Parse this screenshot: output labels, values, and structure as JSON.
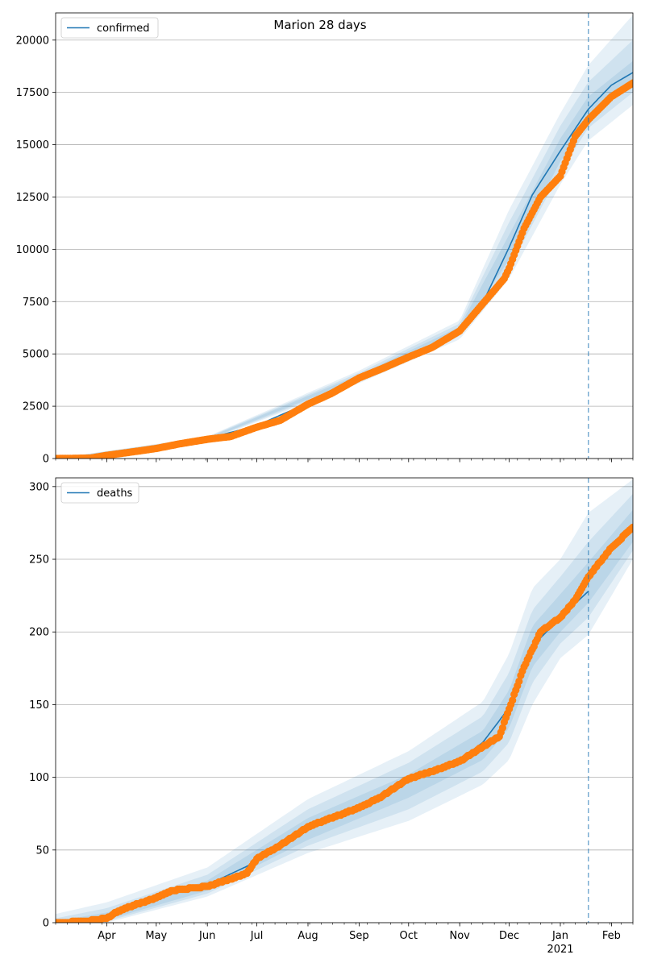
{
  "figure_title": "Marion 28 days",
  "colors": {
    "model_line": "#1f77b4",
    "observed": "#ff7f0e",
    "band": "#1f77b4",
    "grid": "#b0b0b0",
    "forecast_line": "#1f77b4"
  },
  "x_axis": {
    "range": [
      "2020-03-01",
      "2021-02-14"
    ],
    "month_ticks": [
      {
        "date": "2020-04-01",
        "label": "Apr"
      },
      {
        "date": "2020-05-01",
        "label": "May"
      },
      {
        "date": "2020-06-01",
        "label": "Jun"
      },
      {
        "date": "2020-07-01",
        "label": "Jul"
      },
      {
        "date": "2020-08-01",
        "label": "Aug"
      },
      {
        "date": "2020-09-01",
        "label": "Sep"
      },
      {
        "date": "2020-10-01",
        "label": "Oct"
      },
      {
        "date": "2020-11-01",
        "label": "Nov"
      },
      {
        "date": "2020-12-01",
        "label": "Dec"
      },
      {
        "date": "2021-01-01",
        "label": "Jan"
      },
      {
        "date": "2021-02-01",
        "label": "Feb"
      }
    ],
    "year_label": "2021",
    "year_label_date": "2021-01-01",
    "forecast_start": "2021-01-18"
  },
  "chart_data": [
    {
      "type": "line",
      "title": "Marion 28 days",
      "legend": [
        "confirmed"
      ],
      "legend_position": "top-left",
      "grid": "y",
      "ylim": [
        0,
        21300
      ],
      "yticks": [
        0,
        2500,
        5000,
        7500,
        10000,
        12500,
        15000,
        17500,
        20000
      ],
      "ytick_labels": [
        "0",
        "2500",
        "5000",
        "7500",
        "10000",
        "12500",
        "15000",
        "17500",
        "20000"
      ],
      "series": [
        {
          "name": "confirmed",
          "kind": "model",
          "x": [
            "2020-03-01",
            "2020-04-01",
            "2020-05-01",
            "2020-06-01",
            "2020-07-01",
            "2020-08-01",
            "2020-09-01",
            "2020-10-01",
            "2020-11-01",
            "2020-11-15",
            "2020-12-01",
            "2020-12-15",
            "2021-01-01",
            "2021-01-18",
            "2021-02-01",
            "2021-02-14"
          ],
          "values": [
            0,
            150,
            480,
            950,
            1580,
            2650,
            3900,
            4880,
            6150,
            7450,
            10100,
            12600,
            14700,
            16700,
            17850,
            18450
          ]
        },
        {
          "kind": "observed",
          "x": [
            "2020-03-01",
            "2020-03-22",
            "2020-04-01",
            "2020-04-15",
            "2020-05-01",
            "2020-05-15",
            "2020-06-01",
            "2020-06-15",
            "2020-07-01",
            "2020-07-15",
            "2020-08-01",
            "2020-08-15",
            "2020-09-01",
            "2020-09-15",
            "2020-10-01",
            "2020-10-15",
            "2020-11-01",
            "2020-11-15",
            "2020-11-28",
            "2020-12-01",
            "2020-12-10",
            "2020-12-20",
            "2021-01-01",
            "2021-01-10",
            "2021-01-18",
            "2021-02-01",
            "2021-02-14"
          ],
          "values": [
            0,
            20,
            150,
            300,
            480,
            700,
            920,
            1050,
            1500,
            1820,
            2600,
            3100,
            3850,
            4300,
            4850,
            5300,
            6100,
            7400,
            8600,
            9100,
            11000,
            12500,
            13500,
            15400,
            16200,
            17300,
            17950
          ]
        }
      ],
      "bands": [
        {
          "x": [
            "2020-03-01",
            "2020-06-01",
            "2020-09-01",
            "2020-11-01",
            "2020-12-01",
            "2021-01-01",
            "2021-01-18",
            "2021-02-14"
          ],
          "lower": [
            0,
            850,
            3600,
            5700,
            8600,
            13100,
            15200,
            16900
          ],
          "upper": [
            0,
            1050,
            4200,
            6600,
            11900,
            16500,
            18800,
            21200
          ]
        },
        {
          "x": [
            "2020-03-01",
            "2020-06-01",
            "2020-09-01",
            "2020-11-01",
            "2020-12-01",
            "2021-01-01",
            "2021-01-18",
            "2021-02-14"
          ],
          "lower": [
            0,
            880,
            3700,
            5850,
            9100,
            13700,
            15800,
            17500
          ],
          "upper": [
            0,
            1020,
            4100,
            6450,
            11300,
            15900,
            18000,
            20000
          ]
        },
        {
          "x": [
            "2020-03-01",
            "2020-06-01",
            "2020-09-01",
            "2020-11-01",
            "2020-12-01",
            "2021-01-01",
            "2021-01-18",
            "2021-02-14"
          ],
          "lower": [
            0,
            910,
            3800,
            6000,
            9500,
            14200,
            16200,
            17900
          ],
          "upper": [
            0,
            990,
            4000,
            6300,
            10700,
            15300,
            17300,
            19000
          ]
        }
      ]
    },
    {
      "type": "line",
      "title": "",
      "legend": [
        "deaths"
      ],
      "legend_position": "top-left",
      "grid": "y",
      "ylim": [
        0,
        306
      ],
      "yticks": [
        0,
        50,
        100,
        150,
        200,
        250,
        300
      ],
      "ytick_labels": [
        "0",
        "50",
        "100",
        "150",
        "200",
        "250",
        "300"
      ],
      "series": [
        {
          "name": "deaths",
          "kind": "model",
          "x": [
            "2020-03-01",
            "2020-04-01",
            "2020-05-01",
            "2020-06-01",
            "2020-07-01",
            "2020-08-01",
            "2020-09-01",
            "2020-10-01",
            "2020-11-01",
            "2020-11-15",
            "2020-12-01",
            "2020-12-15",
            "2021-01-01",
            "2021-01-18"
          ],
          "values": [
            0,
            4,
            18,
            26,
            42,
            64,
            79,
            97,
            112,
            124,
            148,
            190,
            210,
            228
          ]
        },
        {
          "kind": "observed",
          "x": [
            "2020-03-01",
            "2020-03-20",
            "2020-04-01",
            "2020-04-08",
            "2020-04-20",
            "2020-05-01",
            "2020-05-10",
            "2020-06-01",
            "2020-06-15",
            "2020-06-25",
            "2020-07-01",
            "2020-07-15",
            "2020-08-01",
            "2020-08-15",
            "2020-09-01",
            "2020-09-15",
            "2020-10-01",
            "2020-10-15",
            "2020-11-01",
            "2020-11-15",
            "2020-11-25",
            "2020-12-01",
            "2020-12-10",
            "2020-12-20",
            "2021-01-01",
            "2021-01-10",
            "2021-01-18",
            "2021-02-01",
            "2021-02-14"
          ],
          "values": [
            0,
            1,
            3,
            8,
            13,
            17,
            22,
            25,
            30,
            34,
            44,
            53,
            66,
            72,
            79,
            87,
            99,
            104,
            111,
            121,
            128,
            147,
            176,
            200,
            210,
            222,
            238,
            258,
            272
          ]
        }
      ],
      "bands": [
        {
          "x": [
            "2020-03-01",
            "2020-04-01",
            "2020-06-01",
            "2020-08-01",
            "2020-10-01",
            "2020-11-15",
            "2020-12-01",
            "2020-12-15",
            "2021-01-01",
            "2021-01-18",
            "2021-02-14"
          ],
          "lower": [
            0,
            0,
            18,
            48,
            70,
            95,
            112,
            150,
            182,
            198,
            250
          ],
          "upper": [
            6,
            14,
            38,
            85,
            118,
            152,
            185,
            230,
            250,
            282,
            305
          ]
        },
        {
          "x": [
            "2020-03-01",
            "2020-04-01",
            "2020-06-01",
            "2020-08-01",
            "2020-10-01",
            "2020-11-15",
            "2020-12-01",
            "2020-12-15",
            "2021-01-01",
            "2021-01-18",
            "2021-02-14"
          ],
          "lower": [
            0,
            1,
            20,
            53,
            78,
            104,
            124,
            165,
            192,
            210,
            256
          ],
          "upper": [
            3,
            10,
            33,
            78,
            110,
            142,
            172,
            215,
            238,
            262,
            295
          ]
        },
        {
          "x": [
            "2020-03-01",
            "2020-04-01",
            "2020-06-01",
            "2020-08-01",
            "2020-10-01",
            "2020-11-15",
            "2020-12-01",
            "2020-12-15",
            "2021-01-01",
            "2021-01-18",
            "2021-02-14"
          ],
          "lower": [
            0,
            2,
            22,
            57,
            86,
            112,
            134,
            176,
            200,
            220,
            262
          ],
          "upper": [
            1,
            7,
            29,
            72,
            102,
            132,
            160,
            204,
            226,
            248,
            284
          ]
        }
      ]
    }
  ]
}
